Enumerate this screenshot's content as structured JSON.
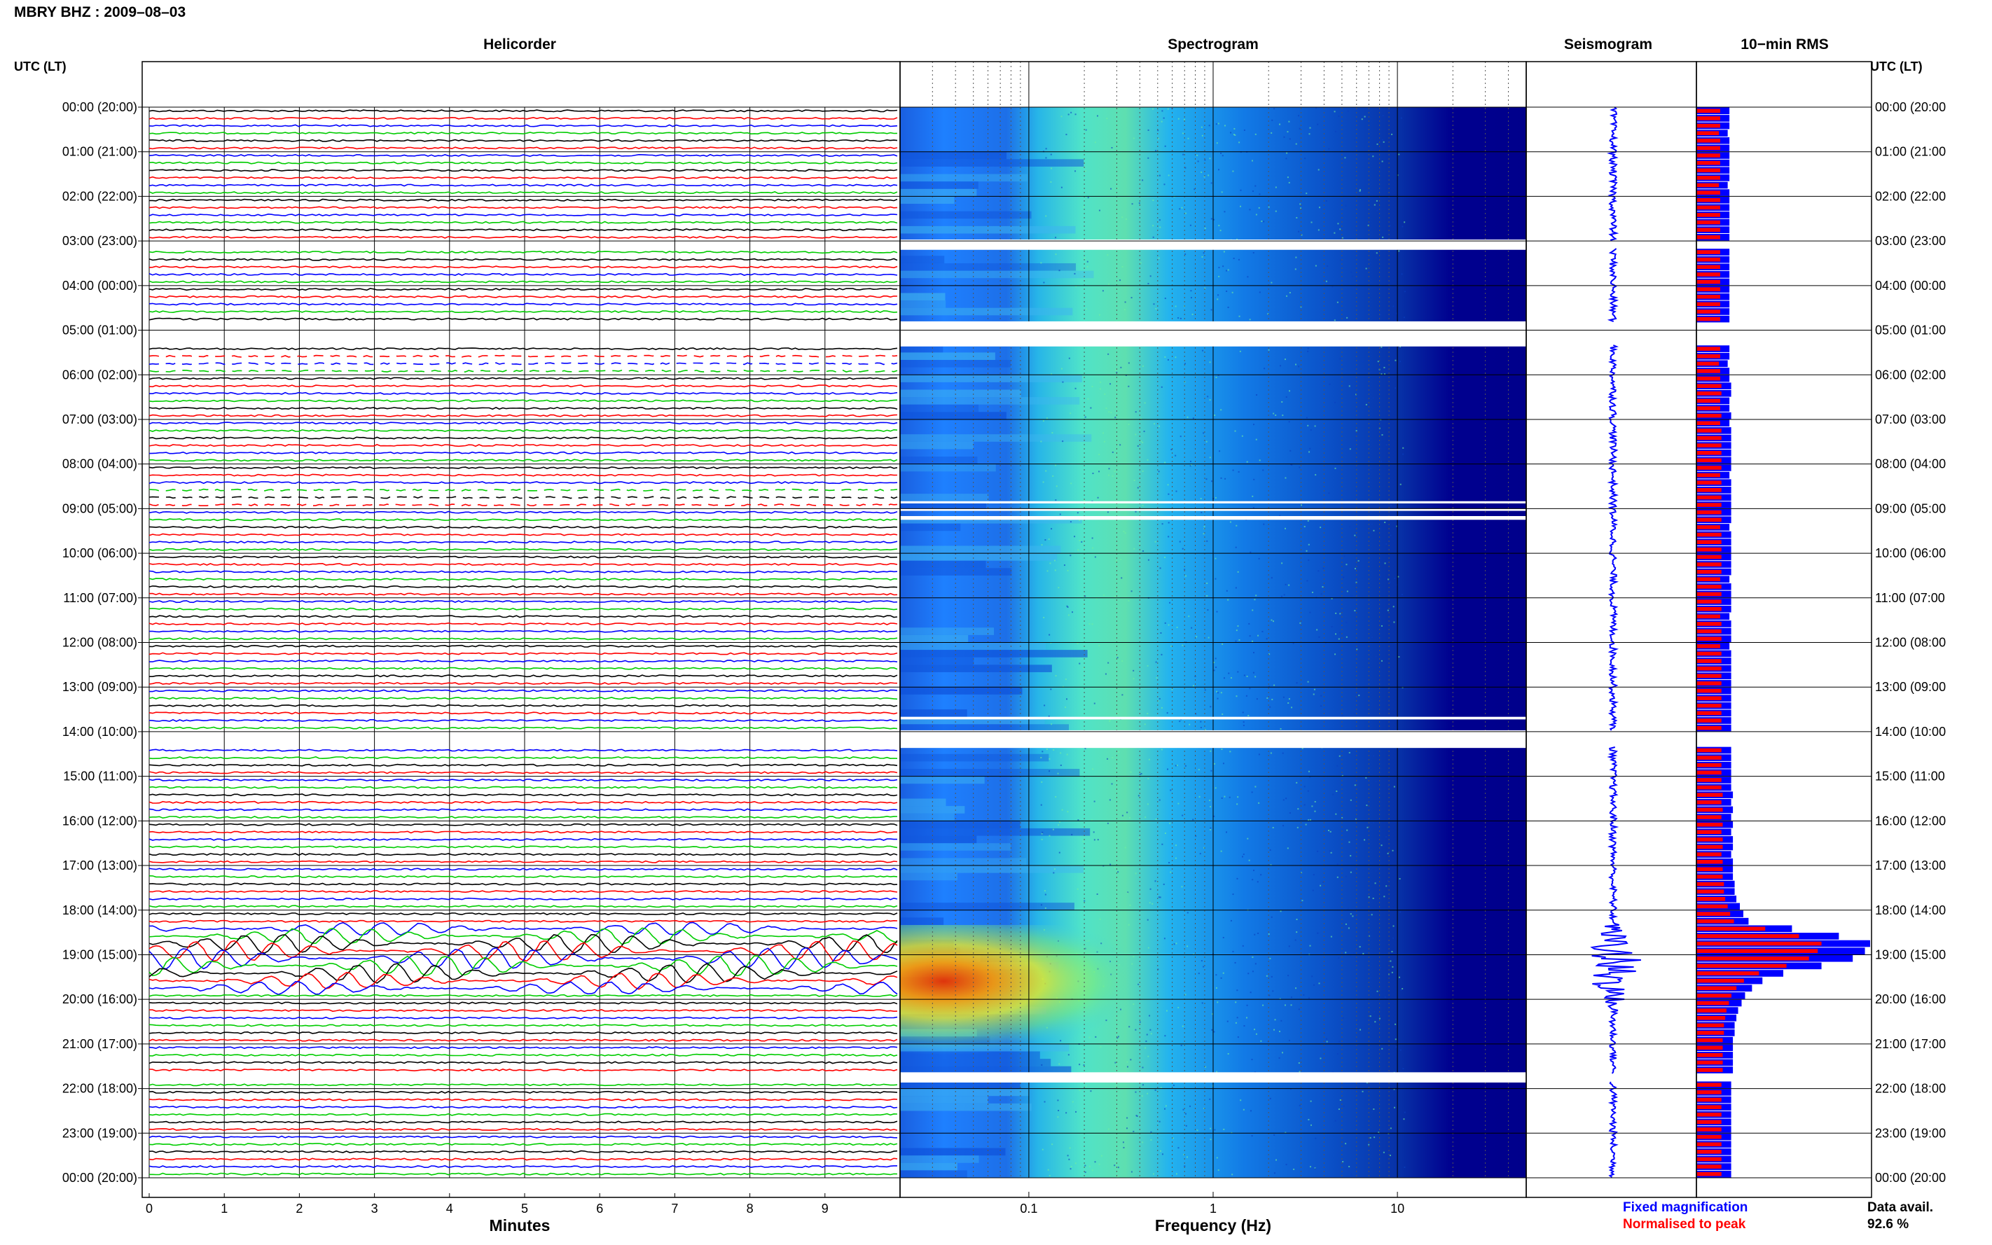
{
  "title": "MBRY BHZ : 2009–08–03",
  "headers": {
    "helicorder": "Helicorder",
    "spectrogram": "Spectrogram",
    "seismogram": "Seismogram",
    "rms": "10−min RMS",
    "utc_left": "UTC (LT)",
    "utc_right": "UTC (LT)"
  },
  "time_labels": [
    "00:00 (20:00)",
    "01:00 (21:00)",
    "02:00 (22:00)",
    "03:00 (23:00)",
    "04:00 (00:00)",
    "05:00 (01:00)",
    "06:00 (02:00)",
    "07:00 (03:00)",
    "08:00 (04:00)",
    "09:00 (05:00)",
    "10:00 (06:00)",
    "11:00 (07:00)",
    "12:00 (08:00)",
    "13:00 (09:00)",
    "14:00 (10:00)",
    "15:00 (11:00)",
    "16:00 (12:00)",
    "17:00 (13:00)",
    "18:00 (14:00)",
    "19:00 (15:00)",
    "20:00 (16:00)",
    "21:00 (17:00)",
    "22:00 (18:00)",
    "23:00 (19:00)",
    "00:00 (20:00)"
  ],
  "minutes_axis": {
    "label": "Minutes",
    "ticks": [
      "0",
      "1",
      "2",
      "3",
      "4",
      "5",
      "6",
      "7",
      "8",
      "9"
    ]
  },
  "frequency_axis": {
    "label": "Frequency (Hz)",
    "ticks": [
      "0.1",
      "1",
      "10"
    ],
    "scale": "log",
    "range_hz": [
      0.02,
      50
    ]
  },
  "legend": {
    "fixed": "Fixed magnification",
    "normalised": "Normalised to peak"
  },
  "data_avail": {
    "label": "Data avail.",
    "value": "92.6 %"
  },
  "colors": {
    "trace_cycle": [
      "#000000",
      "#ff0000",
      "#0000ff",
      "#00cc00"
    ],
    "fixed": "#0000ff",
    "normalised": "#ff0000",
    "spectro_low": "#00008b",
    "spectro_high": "#ff0000"
  },
  "chart_data": {
    "type": "heatmap",
    "panels": [
      "helicorder",
      "spectrogram",
      "seismogram",
      "10-min RMS"
    ],
    "helicorder": {
      "lines_per_hour": 6,
      "minutes_per_line": 10,
      "event_window_utc": [
        "18:20",
        "19:40"
      ],
      "data_gaps_utc": [
        [
          "03:00",
          "03:10"
        ],
        [
          "05:00",
          "05:20"
        ],
        [
          "05:30",
          "05:50"
        ],
        [
          "08:50",
          "08:55"
        ],
        [
          "09:00",
          "09:05"
        ],
        [
          "14:00",
          "14:20"
        ],
        [
          "21:40",
          "21:50"
        ]
      ]
    },
    "rms_10min": {
      "units": "relative",
      "fixed_magnification": [
        0.19,
        0.19,
        0.19,
        0.18,
        0.19,
        0.19,
        0.19,
        0.19,
        0.19,
        0.19,
        0.18,
        0.19,
        0.19,
        0.19,
        0.19,
        0.19,
        0.19,
        0.19,
        null,
        0.19,
        0.19,
        0.19,
        0.19,
        0.19,
        0.19,
        0.19,
        0.19,
        0.19,
        0.19,
        null,
        null,
        null,
        0.19,
        0.19,
        0.18,
        0.19,
        0.19,
        0.2,
        0.2,
        0.19,
        0.19,
        0.2,
        0.19,
        0.2,
        0.2,
        0.2,
        0.2,
        0.2,
        0.2,
        0.19,
        0.2,
        0.2,
        0.2,
        0.2,
        0.2,
        0.2,
        0.19,
        0.2,
        0.2,
        0.2,
        0.2,
        0.2,
        0.2,
        0.19,
        0.2,
        0.2,
        0.2,
        0.2,
        0.19,
        0.2,
        0.2,
        0.2,
        0.19,
        0.2,
        0.2,
        0.2,
        0.2,
        0.2,
        0.2,
        0.2,
        0.2,
        0.2,
        0.2,
        0.2,
        null,
        null,
        0.2,
        0.2,
        0.2,
        0.2,
        0.2,
        0.2,
        0.21,
        0.2,
        0.21,
        0.2,
        0.21,
        0.2,
        0.21,
        0.21,
        0.2,
        0.21,
        0.21,
        0.21,
        0.22,
        0.22,
        0.23,
        0.25,
        0.27,
        0.3,
        0.55,
        0.82,
        1.0,
        0.97,
        0.9,
        0.72,
        0.5,
        0.38,
        0.32,
        0.28,
        0.26,
        0.24,
        0.23,
        0.22,
        0.22,
        0.21,
        0.21,
        0.21,
        0.21,
        0.21,
        null,
        0.2,
        0.2,
        0.2,
        0.2,
        0.2,
        0.2,
        0.2,
        0.2,
        0.2,
        0.2,
        0.2,
        0.2,
        0.2
      ]
    },
    "spectrogram": {
      "x_label": "Frequency (Hz)",
      "x_scale": "log",
      "event_peak_hz": [
        0.03,
        0.15
      ]
    }
  }
}
